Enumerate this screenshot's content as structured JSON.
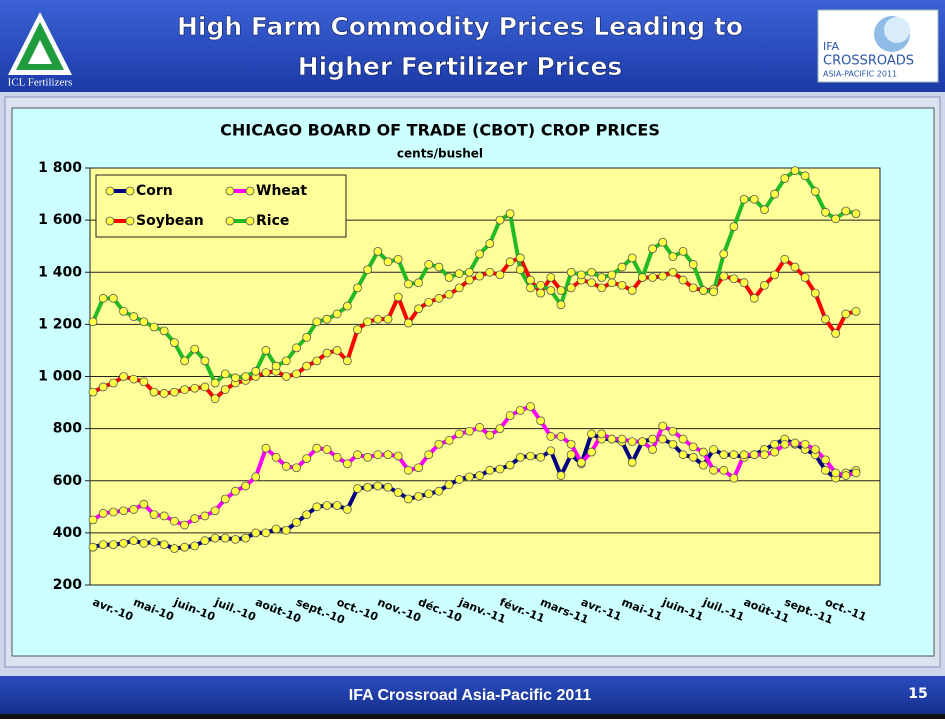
{
  "header": {
    "title_lines": [
      "High Farm Commodity Prices Leading to",
      "Higher Fertilizer Prices"
    ],
    "left_logo": "ICL Fertilizers",
    "right_logo": [
      "IFA",
      "CROSSROADS",
      "ASIA-PACIFIC 2011"
    ]
  },
  "footer": {
    "text": "IFA Crossroad Asia-Pacific 2011",
    "page_number": "15"
  },
  "chart_data": {
    "type": "line",
    "title": "CHICAGO BOARD OF TRADE (CBOT) CROP PRICES",
    "subtitle": "cents/bushel",
    "categories": [
      "avr.-10",
      null,
      null,
      null,
      "mai-10",
      null,
      null,
      null,
      "juin-10",
      null,
      null,
      null,
      "juil.-10",
      null,
      null,
      null,
      "août-10",
      null,
      null,
      null,
      "sept.-10",
      null,
      null,
      null,
      "oct.-10",
      null,
      null,
      null,
      "nov.-10",
      null,
      null,
      null,
      "déc.-10",
      null,
      null,
      null,
      "janv.-11",
      null,
      null,
      null,
      "févr.-11",
      null,
      null,
      null,
      "mars-11",
      null,
      null,
      null,
      "avr.-11",
      null,
      null,
      null,
      "mai-11",
      null,
      null,
      null,
      "juin-11",
      null,
      null,
      null,
      "juil.-11",
      null,
      null,
      null,
      "août-11",
      null,
      null,
      null,
      "sept.-11",
      null,
      null,
      null,
      "oct.-11",
      null,
      null,
      null
    ],
    "series": [
      {
        "name": "Corn",
        "color": "#000080",
        "values": [
          345,
          355,
          355,
          360,
          370,
          360,
          365,
          355,
          340,
          345,
          350,
          370,
          380,
          380,
          375,
          380,
          400,
          400,
          415,
          410,
          440,
          470,
          500,
          505,
          505,
          490,
          570,
          575,
          580,
          575,
          555,
          530,
          540,
          550,
          560,
          585,
          605,
          615,
          620,
          640,
          645,
          660,
          690,
          695,
          690,
          715,
          620,
          700,
          665,
          780,
          760,
          760,
          750,
          670,
          750,
          760,
          760,
          740,
          700,
          690,
          660,
          720,
          700,
          700,
          690,
          700,
          720,
          740,
          760,
          740,
          720,
          700,
          640,
          610,
          630,
          640
        ]
      },
      {
        "name": "Wheat",
        "color": "#ff00ff",
        "values": [
          450,
          475,
          480,
          485,
          490,
          510,
          470,
          465,
          445,
          430,
          455,
          465,
          485,
          530,
          560,
          580,
          615,
          725,
          690,
          655,
          650,
          685,
          725,
          720,
          690,
          665,
          700,
          690,
          700,
          700,
          695,
          640,
          650,
          700,
          740,
          755,
          780,
          790,
          805,
          775,
          800,
          850,
          870,
          885,
          830,
          770,
          770,
          740,
          670,
          710,
          780,
          760,
          760,
          750,
          750,
          720,
          810,
          790,
          760,
          730,
          710,
          640,
          640,
          610,
          700,
          700,
          700,
          710,
          740,
          745,
          740,
          720,
          680,
          630,
          620,
          630
        ]
      },
      {
        "name": "Soybean",
        "color": "#ff0000",
        "values": [
          940,
          960,
          975,
          1000,
          990,
          980,
          940,
          935,
          940,
          950,
          955,
          960,
          915,
          950,
          975,
          985,
          1000,
          1015,
          1020,
          1000,
          1010,
          1040,
          1060,
          1090,
          1100,
          1060,
          1180,
          1210,
          1220,
          1220,
          1305,
          1205,
          1260,
          1285,
          1300,
          1315,
          1340,
          1370,
          1385,
          1400,
          1390,
          1440,
          1455,
          1370,
          1320,
          1380,
          1330,
          1340,
          1370,
          1360,
          1340,
          1360,
          1350,
          1330,
          1380,
          1380,
          1385,
          1400,
          1370,
          1340,
          1330,
          1335,
          1385,
          1375,
          1360,
          1300,
          1350,
          1390,
          1450,
          1420,
          1380,
          1320,
          1220,
          1165,
          1240,
          1250
        ]
      },
      {
        "name": "Rice",
        "color": "#22bb22",
        "values": [
          1210,
          1300,
          1300,
          1250,
          1230,
          1210,
          1190,
          1175,
          1130,
          1060,
          1105,
          1060,
          975,
          1010,
          995,
          1000,
          1020,
          1100,
          1040,
          1060,
          1110,
          1150,
          1210,
          1220,
          1240,
          1270,
          1340,
          1410,
          1480,
          1440,
          1450,
          1355,
          1360,
          1430,
          1420,
          1380,
          1395,
          1400,
          1470,
          1510,
          1600,
          1625,
          1410,
          1340,
          1350,
          1330,
          1275,
          1400,
          1390,
          1400,
          1380,
          1390,
          1420,
          1455,
          1380,
          1490,
          1515,
          1460,
          1480,
          1430,
          1330,
          1325,
          1470,
          1575,
          1680,
          1680,
          1640,
          1700,
          1760,
          1790,
          1770,
          1710,
          1630,
          1605,
          1635,
          1625
        ]
      }
    ],
    "marker_color": "#ffff44",
    "ylim": [
      200,
      1800
    ],
    "yticks": [
      200,
      400,
      600,
      800,
      {
        "value": 1000,
        "label": "1 000"
      },
      {
        "value": 1200,
        "label": "1 200"
      },
      {
        "value": 1400,
        "label": "1 400"
      },
      {
        "value": 1600,
        "label": "1 600"
      },
      {
        "value": 1800,
        "label": "1 800"
      }
    ],
    "grid": true,
    "legend": "upper left"
  }
}
